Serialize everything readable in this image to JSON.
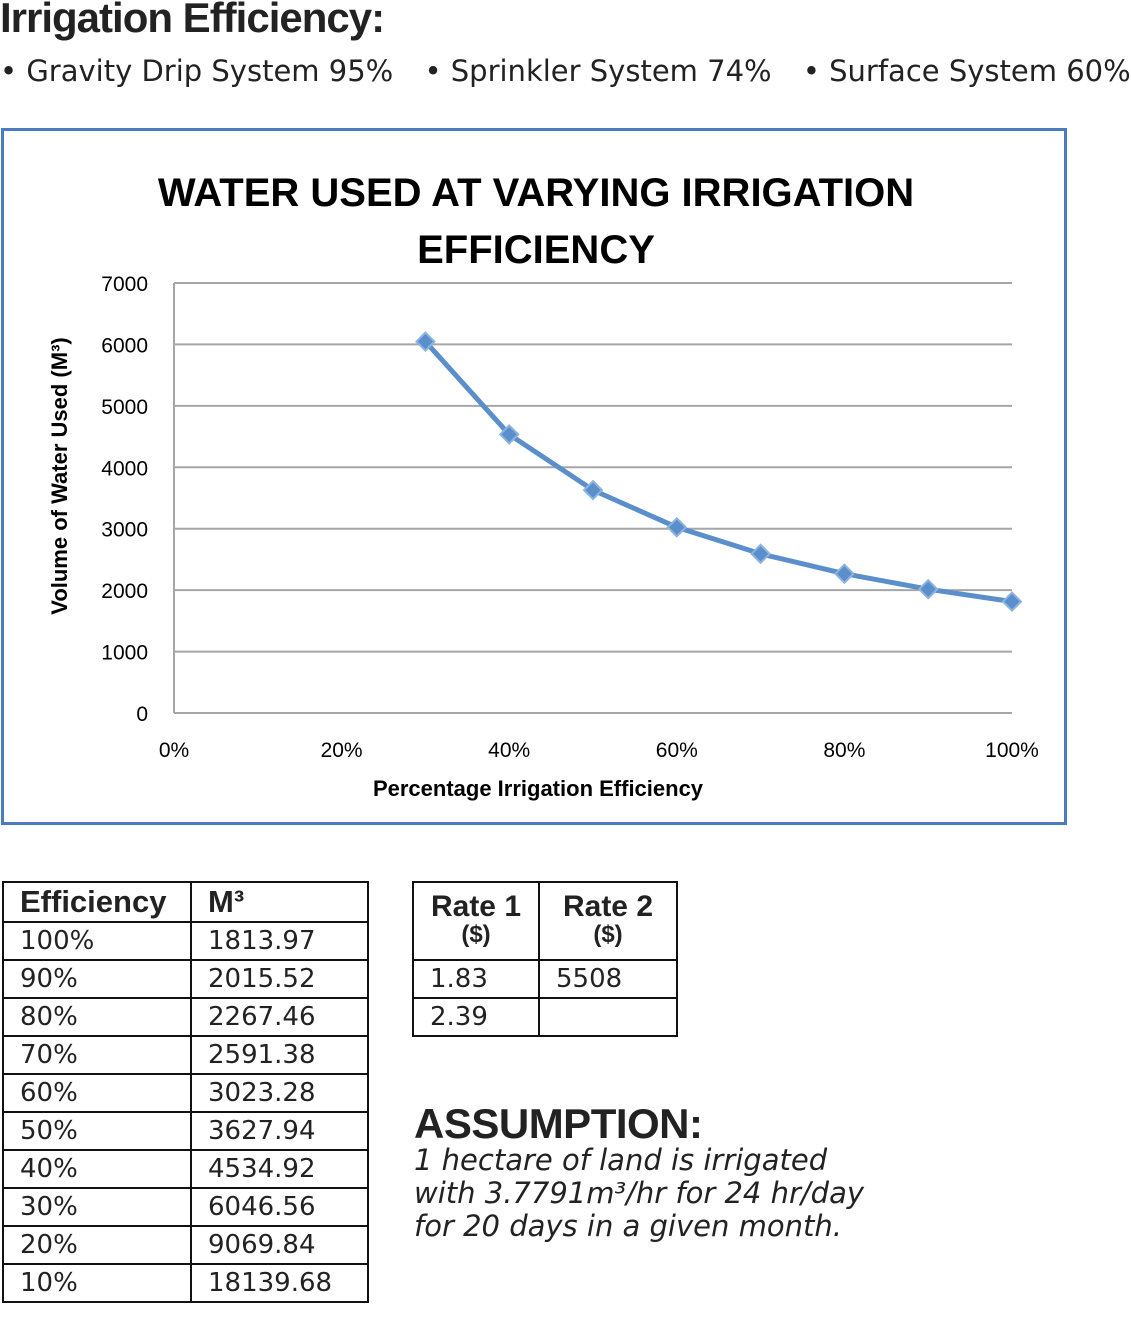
{
  "header": {
    "title": "Irrigation Efficiency:",
    "systems": [
      "• Gravity Drip System 95%",
      "• Sprinkler System 74%",
      "• Surface System 60%"
    ]
  },
  "chart_data": {
    "type": "line",
    "title_lines": [
      "WATER  USED  AT VARYING IRRIGATION",
      "EFFICIENCY"
    ],
    "xlabel": "Percentage Irrigation Efficiency",
    "ylabel": "Volume of Water Used (M³)",
    "xlim": [
      0,
      100
    ],
    "ylim": [
      0,
      7000
    ],
    "x_ticks": [
      "0%",
      "20%",
      "40%",
      "60%",
      "80%",
      "100%"
    ],
    "x_tick_values": [
      0,
      20,
      40,
      60,
      80,
      100
    ],
    "y_ticks": [
      "0",
      "1000",
      "2000",
      "3000",
      "4000",
      "5000",
      "6000",
      "7000"
    ],
    "y_tick_values": [
      0,
      1000,
      2000,
      3000,
      4000,
      5000,
      6000,
      7000
    ],
    "grid": true,
    "series": [
      {
        "x": [
          30,
          40,
          50,
          60,
          70,
          80,
          90,
          100
        ],
        "y": [
          6046.56,
          4534.92,
          3627.94,
          3023.28,
          2591.38,
          2267.46,
          2015.52,
          1813.97
        ]
      }
    ],
    "colors": {
      "line": "#5a8fcb",
      "grid": "#a6a6a6",
      "frame": "#4a7cc1"
    }
  },
  "efficiency_table": {
    "headers": [
      "Efficiency",
      "M³"
    ],
    "rows": [
      [
        "100%",
        "1813.97"
      ],
      [
        "90%",
        "2015.52"
      ],
      [
        "80%",
        "2267.46"
      ],
      [
        "70%",
        "2591.38"
      ],
      [
        "60%",
        "3023.28"
      ],
      [
        "50%",
        "3627.94"
      ],
      [
        "40%",
        "4534.92"
      ],
      [
        "30%",
        "6046.56"
      ],
      [
        "20%",
        "9069.84"
      ],
      [
        "10%",
        "18139.68"
      ]
    ]
  },
  "rate_table": {
    "headers": [
      {
        "label": "Rate 1",
        "unit": "($)"
      },
      {
        "label": "Rate 2",
        "unit": "($)"
      }
    ],
    "rows": [
      [
        "1.83",
        "5508"
      ],
      [
        "2.39",
        ""
      ]
    ]
  },
  "assumption": {
    "title": "ASSUMPTION:",
    "lines": [
      "1  hectare   of  land  is  irrigated",
      "with  3.7791m³/hr for 24 hr/day",
      "for 20 days in a given month."
    ]
  }
}
